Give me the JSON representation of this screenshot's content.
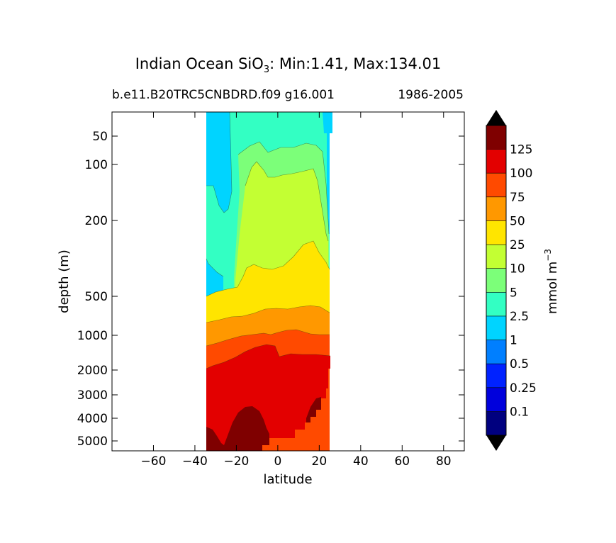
{
  "title": {
    "prefix": "Indian Ocean SiO",
    "subscript": "3",
    "suffix": ": Min:1.41, Max:134.01"
  },
  "subtitle_left": "b.e11.B20TRC5CNBDRD.f09 g16.001",
  "subtitle_right": "1986-2005",
  "chart_data": {
    "type": "contour",
    "xlabel": "latitude",
    "ylabel": "depth (m)",
    "colorbar_label": "mmol m",
    "colorbar_label_exp": "−3",
    "x_ticks": [
      -60,
      -40,
      -20,
      0,
      20,
      40,
      60,
      80
    ],
    "y_ticks": [
      50,
      100,
      200,
      500,
      1000,
      2000,
      3000,
      4000,
      5000
    ],
    "levels": [
      0.1,
      0.25,
      0.5,
      1,
      2.5,
      5,
      10,
      25,
      50,
      75,
      100,
      125
    ],
    "level_labels": [
      "0.1",
      "0.25",
      "0.5",
      "1",
      "2.5",
      "5",
      "10",
      "25",
      "50",
      "75",
      "100",
      "125"
    ],
    "level_colors": [
      "#00007f",
      "#0000dc",
      "#0022ff",
      "#007fff",
      "#00d4ff",
      "#33ffc3",
      "#7cff79",
      "#c3ff33",
      "#ffe500",
      "#ff9800",
      "#ff4a00",
      "#e30000",
      "#7f0000"
    ],
    "extend": "both",
    "min": 1.41,
    "max": 134.01
  }
}
